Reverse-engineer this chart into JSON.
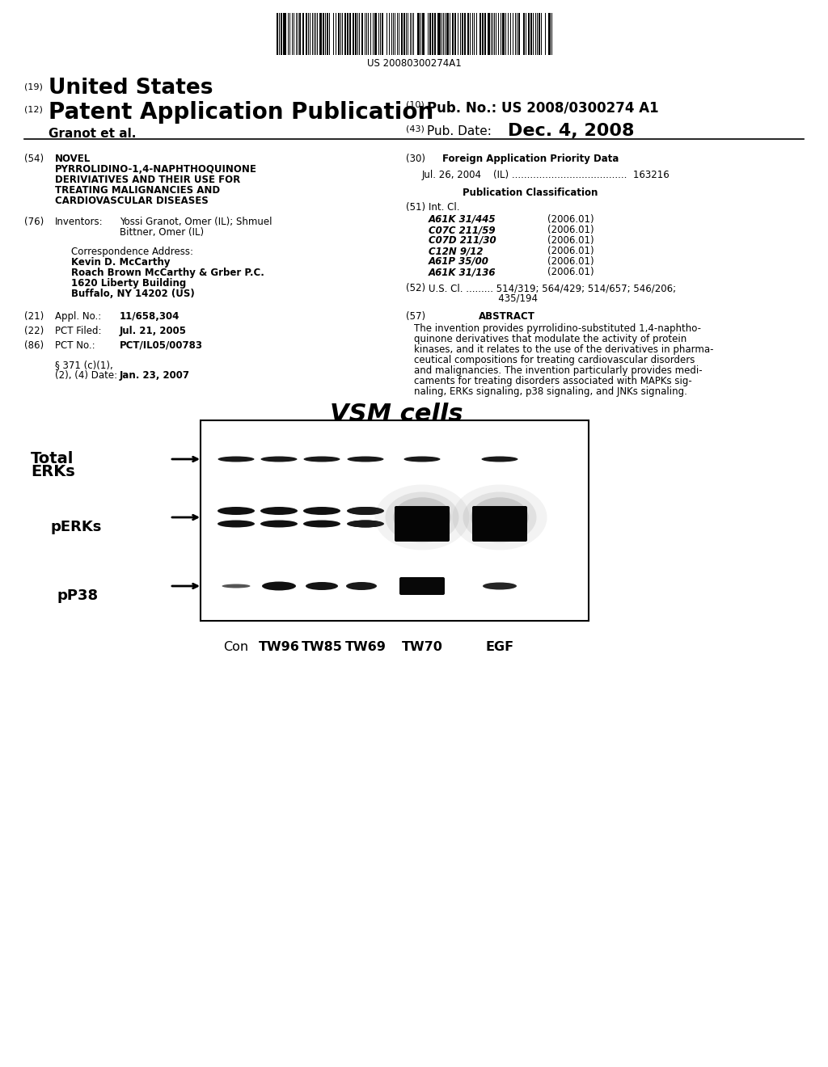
{
  "background_color": "#ffffff",
  "barcode_text": "US 20080300274A1",
  "header": {
    "number_19": "(19)",
    "united_states": "United States",
    "number_12": "(12)",
    "patent_app_pub": "Patent Application Publication",
    "granot_et_al": "Granot et al.",
    "number_10": "(10)",
    "pub_no_label": "Pub. No.: US 2008/0300274 A1",
    "number_43": "(43)",
    "pub_date_label": "Pub. Date:",
    "pub_date_value": "Dec. 4, 2008"
  },
  "gel_title": "VSM cells",
  "gel_col_labels": [
    "Con",
    "TW96",
    "TW85",
    "TW69",
    "TW70",
    "EGF"
  ]
}
